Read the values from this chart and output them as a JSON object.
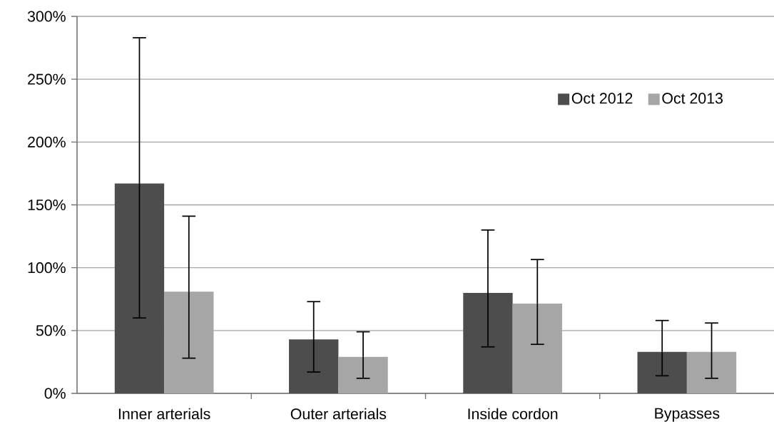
{
  "chart_data": {
    "type": "bar",
    "categories": [
      "Inner arterials",
      "Outer arterials",
      "Inside cordon",
      "Bypasses"
    ],
    "series": [
      {
        "name": "Oct 2012",
        "color": "#4d4d4d",
        "values": [
          167,
          43,
          80,
          33
        ],
        "errors": [
          [
            60,
            283
          ],
          [
            17,
            73
          ],
          [
            37,
            130
          ],
          [
            14,
            58
          ]
        ]
      },
      {
        "name": "Oct 2013",
        "color": "#a6a6a6",
        "values": [
          81,
          29,
          71.5,
          33
        ],
        "errors": [
          [
            28,
            141
          ],
          [
            12,
            49
          ],
          [
            39,
            106.5
          ],
          [
            12,
            56
          ]
        ]
      }
    ],
    "ylim": [
      0,
      300
    ],
    "yticks": [
      {
        "value": 0,
        "label": "0%"
      },
      {
        "value": 50,
        "label": "50%"
      },
      {
        "value": 100,
        "label": "100%"
      },
      {
        "value": 150,
        "label": "150%"
      },
      {
        "value": 200,
        "label": "200%"
      },
      {
        "value": 250,
        "label": "250%"
      },
      {
        "value": 300,
        "label": "300%"
      }
    ],
    "grid": "y",
    "legend": "top right"
  }
}
